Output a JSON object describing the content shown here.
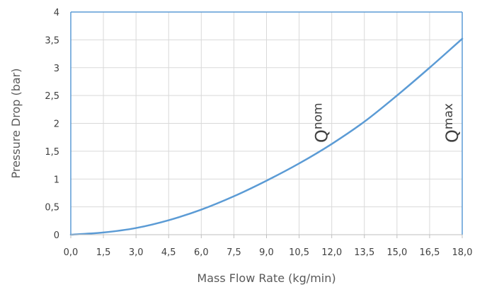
{
  "chart_data": {
    "type": "line",
    "title": "",
    "xlabel": "Mass Flow Rate (kg/min)",
    "ylabel": "Pressure Drop  (bar)",
    "xlim": [
      0,
      18
    ],
    "ylim": [
      0,
      4
    ],
    "x_ticks": [
      "0,0",
      "1,5",
      "3,0",
      "4,5",
      "6,0",
      "7,5",
      "9,0",
      "10,5",
      "12,0",
      "13,5",
      "15,0",
      "16,5",
      "18,0"
    ],
    "y_ticks": [
      "0",
      "0,5",
      "1",
      "1,5",
      "2",
      "2,5",
      "3",
      "3,5",
      "4"
    ],
    "grid": true,
    "legend": "none",
    "series": [
      {
        "color": "#5b9bd5",
        "x": [
          0,
          1.5,
          3,
          4.5,
          6,
          7.5,
          9,
          10.5,
          12,
          13.5,
          15,
          16.5,
          18
        ],
        "y": [
          0,
          0.04,
          0.12,
          0.26,
          0.45,
          0.69,
          0.97,
          1.28,
          1.63,
          2.03,
          2.5,
          3.0,
          3.52
        ]
      }
    ],
    "annotations": [
      {
        "id": "nom",
        "main": "Q",
        "sub": "nom",
        "x": 12
      },
      {
        "id": "max",
        "main": "Q",
        "sub": "max",
        "x": 18
      }
    ],
    "colors": {
      "frame": "#5b9bd5",
      "grid": "#d9d9d9",
      "axis": "#bfbfbf"
    }
  }
}
